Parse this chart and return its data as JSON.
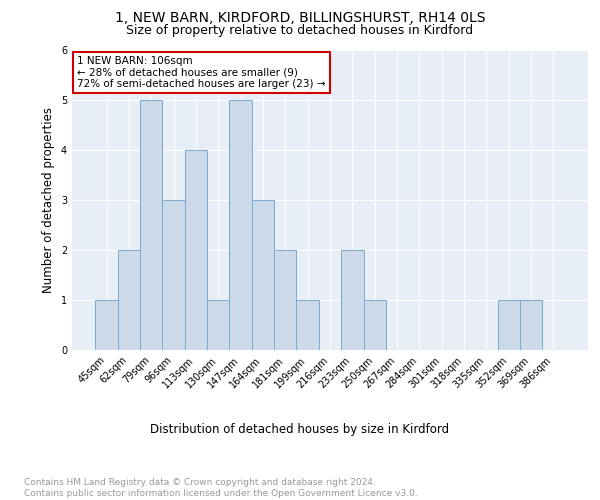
{
  "title1": "1, NEW BARN, KIRDFORD, BILLINGSHURST, RH14 0LS",
  "title2": "Size of property relative to detached houses in Kirdford",
  "xlabel": "Distribution of detached houses by size in Kirdford",
  "ylabel": "Number of detached properties",
  "categories": [
    "45sqm",
    "62sqm",
    "79sqm",
    "96sqm",
    "113sqm",
    "130sqm",
    "147sqm",
    "164sqm",
    "181sqm",
    "199sqm",
    "216sqm",
    "233sqm",
    "250sqm",
    "267sqm",
    "284sqm",
    "301sqm",
    "318sqm",
    "335sqm",
    "352sqm",
    "369sqm",
    "386sqm"
  ],
  "values": [
    1,
    2,
    5,
    3,
    4,
    1,
    5,
    3,
    2,
    1,
    0,
    2,
    1,
    0,
    0,
    0,
    0,
    0,
    1,
    1,
    0
  ],
  "bar_color": "#ccd9e8",
  "bar_edge_color": "#7aaacf",
  "background_color": "#e8eef6",
  "annotation_text": "1 NEW BARN: 106sqm\n← 28% of detached houses are smaller (9)\n72% of semi-detached houses are larger (23) →",
  "annotation_box_color": "#ffffff",
  "annotation_box_edge": "#cc0000",
  "footnote": "Contains HM Land Registry data © Crown copyright and database right 2024.\nContains public sector information licensed under the Open Government Licence v3.0.",
  "ylim": [
    0,
    6
  ],
  "yticks": [
    0,
    1,
    2,
    3,
    4,
    5,
    6
  ],
  "grid_color": "#ffffff",
  "title1_fontsize": 10,
  "title2_fontsize": 9,
  "xlabel_fontsize": 8.5,
  "ylabel_fontsize": 8.5,
  "tick_fontsize": 7,
  "annotation_fontsize": 7.5,
  "footnote_fontsize": 6.5
}
